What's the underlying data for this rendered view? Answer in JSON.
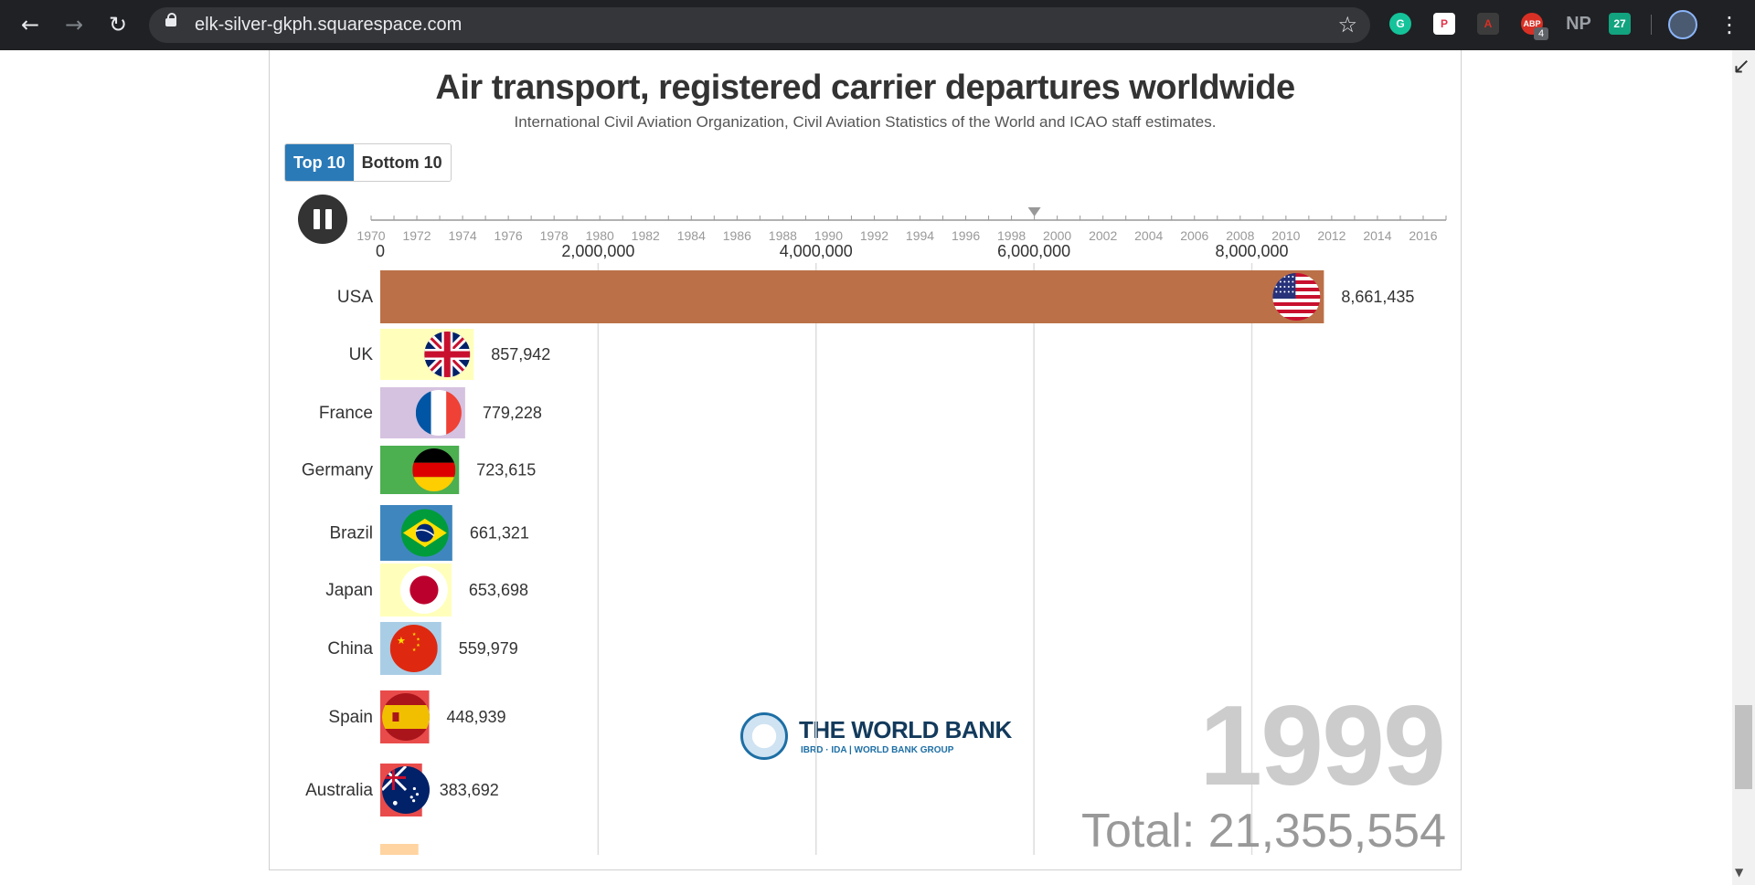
{
  "browser": {
    "url": "elk-silver-gkph.squarespace.com",
    "back_icon": "←",
    "forward_icon": "→",
    "reload_icon": "↻",
    "star_icon": "☆",
    "menu_icon": "⋮",
    "extensions": {
      "grammarly": "G",
      "pocket": "P",
      "pdf": "A",
      "abp": "ABP",
      "abp_badge": "4",
      "np": "NP",
      "ext27": "27"
    }
  },
  "page": {
    "corner_icon": "↙",
    "scroll_down_icon": "▼"
  },
  "controls": {
    "tab_top": "Top 10",
    "tab_bottom": "Bottom 10",
    "active_tab": "top"
  },
  "logo": {
    "name": "THE WORLD BANK",
    "sub": "IBRD · IDA | WORLD BANK GROUP"
  },
  "year_display": "1999",
  "total_display": "Total: 21,355,554",
  "chart_data": {
    "type": "bar",
    "title": "Air transport, registered carrier departures worldwide",
    "subtitle": "International Civil Aviation Organization, Civil Aviation Statistics of the World and ICAO staff estimates.",
    "timeline": {
      "ticks": [
        "1970",
        "1972",
        "1974",
        "1976",
        "1978",
        "1980",
        "1982",
        "1984",
        "1986",
        "1988",
        "1990",
        "1992",
        "1994",
        "1996",
        "1998",
        "2000",
        "2002",
        "2004",
        "2006",
        "2008",
        "2010",
        "2012",
        "2014",
        "2016"
      ],
      "start": 1970,
      "end": 2017,
      "current": 1999
    },
    "xlim": [
      0,
      9900000
    ],
    "x_ticks": [
      0,
      2000000,
      4000000,
      6000000,
      8000000
    ],
    "x_tick_labels": [
      "0",
      "2,000,000",
      "4,000,000",
      "6,000,000",
      "8,000,000"
    ],
    "categories": [
      "USA",
      "UK",
      "France",
      "Germany",
      "Brazil",
      "Japan",
      "China",
      "Spain",
      "Australia",
      ""
    ],
    "values": [
      8661435,
      857942,
      779228,
      723615,
      661321,
      653698,
      559979,
      448939,
      383692,
      350000
    ],
    "value_labels": [
      "8,661,435",
      "857,942",
      "779,228",
      "723,615",
      "661,321",
      "653,698",
      "559,979",
      "448,939",
      "383,692",
      ""
    ],
    "bar_colors": [
      "#bb7048",
      "#ffffbb",
      "#d5c2e0",
      "#4caf50",
      "#3f86bf",
      "#ffffbb",
      "#aacde6",
      "#e94b4b",
      "#e94b4b",
      "#ffd4a0"
    ],
    "flags": [
      "usa",
      "uk",
      "france",
      "germany",
      "brazil",
      "japan",
      "china",
      "spain",
      "australia",
      ""
    ]
  }
}
